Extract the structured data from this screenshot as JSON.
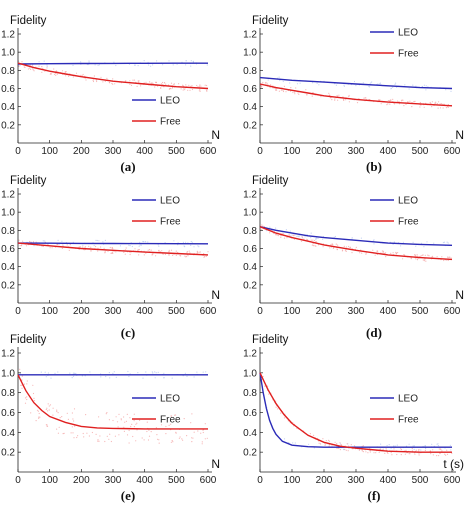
{
  "colors": {
    "leo": "#2b2bb8",
    "free": "#e02020",
    "free_noise": "#f4a6a6",
    "leo_noise": "#b8c8f0",
    "axis": "#222222"
  },
  "chart_data": [
    {
      "id": "a",
      "type": "line",
      "panel_label": "(a)",
      "ylabel": "Fidelity",
      "xlabel": "N",
      "xlim": [
        0,
        600
      ],
      "ylim": [
        0,
        1.2
      ],
      "xticks": [
        "0",
        "100",
        "200",
        "300",
        "400",
        "500",
        "600"
      ],
      "yticks": [
        "0.2",
        "0.4",
        "0.6",
        "0.8",
        "1.0",
        "1.2"
      ],
      "legend": "bottom-right",
      "series": [
        {
          "name": "LEO",
          "key": "leo",
          "x": [
            0,
            100,
            200,
            300,
            400,
            500,
            600
          ],
          "y": [
            0.87,
            0.873,
            0.875,
            0.876,
            0.877,
            0.878,
            0.878
          ]
        },
        {
          "name": "Free",
          "key": "free",
          "x": [
            0,
            50,
            100,
            150,
            200,
            300,
            400,
            500,
            600
          ],
          "y": [
            0.88,
            0.83,
            0.79,
            0.76,
            0.73,
            0.68,
            0.65,
            0.62,
            0.6
          ]
        }
      ]
    },
    {
      "id": "b",
      "type": "line",
      "panel_label": "(b)",
      "ylabel": "Fidelity",
      "xlabel": "N",
      "xlim": [
        0,
        600
      ],
      "ylim": [
        0,
        1.2
      ],
      "xticks": [
        "0",
        "100",
        "200",
        "300",
        "400",
        "500",
        "600"
      ],
      "yticks": [
        "0.2",
        "0.4",
        "0.6",
        "0.8",
        "1.0",
        "1.2"
      ],
      "legend": "top-right",
      "series": [
        {
          "name": "LEO",
          "key": "leo",
          "x": [
            0,
            100,
            200,
            300,
            400,
            500,
            600
          ],
          "y": [
            0.72,
            0.69,
            0.67,
            0.65,
            0.63,
            0.61,
            0.6
          ]
        },
        {
          "name": "Free",
          "key": "free",
          "x": [
            0,
            50,
            100,
            150,
            200,
            300,
            400,
            500,
            600
          ],
          "y": [
            0.65,
            0.61,
            0.58,
            0.55,
            0.52,
            0.48,
            0.45,
            0.43,
            0.41
          ]
        }
      ]
    },
    {
      "id": "c",
      "type": "line",
      "panel_label": "(c)",
      "ylabel": "Fidelity",
      "xlabel": "N",
      "xlim": [
        0,
        600
      ],
      "ylim": [
        0,
        1.2
      ],
      "xticks": [
        "0",
        "100",
        "200",
        "300",
        "400",
        "500",
        "600"
      ],
      "yticks": [
        "0.2",
        "0.4",
        "0.6",
        "0.8",
        "1.0",
        "1.2"
      ],
      "legend": "top-right",
      "series": [
        {
          "name": "LEO",
          "key": "leo",
          "x": [
            0,
            100,
            200,
            300,
            400,
            500,
            600
          ],
          "y": [
            0.66,
            0.658,
            0.656,
            0.655,
            0.654,
            0.653,
            0.652
          ]
        },
        {
          "name": "Free",
          "key": "free",
          "x": [
            0,
            100,
            200,
            300,
            400,
            500,
            600
          ],
          "y": [
            0.66,
            0.63,
            0.6,
            0.58,
            0.56,
            0.545,
            0.53
          ]
        }
      ]
    },
    {
      "id": "d",
      "type": "line",
      "panel_label": "(d)",
      "ylabel": "Fidelity",
      "xlabel": "N",
      "xlim": [
        0,
        600
      ],
      "ylim": [
        0,
        1.2
      ],
      "xticks": [
        "0",
        "100",
        "200",
        "300",
        "400",
        "500",
        "600"
      ],
      "yticks": [
        "0.2",
        "0.4",
        "0.6",
        "0.8",
        "1.0",
        "1.2"
      ],
      "legend": "top-right",
      "series": [
        {
          "name": "LEO",
          "key": "leo",
          "x": [
            0,
            50,
            100,
            150,
            200,
            300,
            400,
            500,
            600
          ],
          "y": [
            0.84,
            0.8,
            0.77,
            0.74,
            0.72,
            0.69,
            0.66,
            0.645,
            0.635
          ]
        },
        {
          "name": "Free",
          "key": "free",
          "x": [
            0,
            50,
            100,
            150,
            200,
            300,
            400,
            500,
            600
          ],
          "y": [
            0.84,
            0.77,
            0.72,
            0.68,
            0.64,
            0.58,
            0.53,
            0.5,
            0.48
          ]
        }
      ]
    },
    {
      "id": "e",
      "type": "line",
      "panel_label": "(e)",
      "ylabel": "Fidelity",
      "xlabel": "N",
      "xlim": [
        0,
        600
      ],
      "ylim": [
        0,
        1.2
      ],
      "xticks": [
        "0",
        "100",
        "200",
        "300",
        "400",
        "500",
        "600"
      ],
      "yticks": [
        "0.2",
        "0.4",
        "0.6",
        "0.8",
        "1.0",
        "1.2"
      ],
      "legend": "middle-right",
      "series": [
        {
          "name": "LEO",
          "key": "leo",
          "x": [
            0,
            100,
            200,
            300,
            400,
            500,
            600
          ],
          "y": [
            0.98,
            0.98,
            0.98,
            0.98,
            0.98,
            0.98,
            0.98
          ]
        },
        {
          "name": "Free",
          "key": "free",
          "x": [
            0,
            25,
            50,
            75,
            100,
            150,
            200,
            250,
            300,
            400,
            500,
            600
          ],
          "y": [
            0.98,
            0.82,
            0.7,
            0.62,
            0.56,
            0.5,
            0.46,
            0.445,
            0.44,
            0.435,
            0.435,
            0.435
          ]
        }
      ]
    },
    {
      "id": "f",
      "type": "line",
      "panel_label": "(f)",
      "ylabel": "Fidelity",
      "xlabel": "t (s)",
      "xlim": [
        0,
        600
      ],
      "ylim": [
        0,
        1.2
      ],
      "xticks": [
        "0",
        "100",
        "200",
        "300",
        "400",
        "500",
        "600"
      ],
      "yticks": [
        "0.2",
        "0.4",
        "0.6",
        "0.8",
        "1.0",
        "1.2"
      ],
      "legend": "top-right",
      "series": [
        {
          "name": "LEO",
          "key": "leo",
          "x": [
            0,
            10,
            20,
            30,
            40,
            50,
            70,
            100,
            150,
            200,
            300,
            400,
            500,
            600
          ],
          "y": [
            1.0,
            0.8,
            0.64,
            0.52,
            0.44,
            0.38,
            0.31,
            0.27,
            0.255,
            0.25,
            0.25,
            0.25,
            0.25,
            0.25
          ]
        },
        {
          "name": "Free",
          "key": "free",
          "x": [
            0,
            25,
            50,
            75,
            100,
            150,
            200,
            250,
            300,
            400,
            500,
            600
          ],
          "y": [
            1.0,
            0.83,
            0.69,
            0.58,
            0.49,
            0.37,
            0.3,
            0.26,
            0.24,
            0.21,
            0.2,
            0.2
          ]
        }
      ]
    }
  ]
}
